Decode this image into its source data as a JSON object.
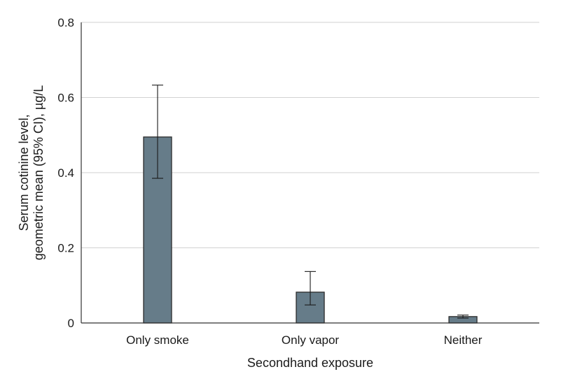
{
  "chart_data": {
    "type": "bar",
    "title": "",
    "xlabel": "Secondhand exposure",
    "ylabel_lines": [
      "Serum cotinine level,",
      "geometric mean (95% CI), µg/L"
    ],
    "categories": [
      "Only smoke",
      "Only vapor",
      "Neither"
    ],
    "values": [
      0.495,
      0.082,
      0.017
    ],
    "ci_lower": [
      0.385,
      0.048,
      0.013
    ],
    "ci_upper": [
      0.633,
      0.137,
      0.021
    ],
    "ylim": [
      0,
      0.8
    ],
    "yticks": [
      0,
      0.2,
      0.4,
      0.6,
      0.8
    ],
    "ytick_labels": [
      "0",
      "0.2",
      "0.4",
      "0.6",
      "0.8"
    ],
    "grid": true,
    "legend": "none",
    "bar_color": "#667c89"
  }
}
